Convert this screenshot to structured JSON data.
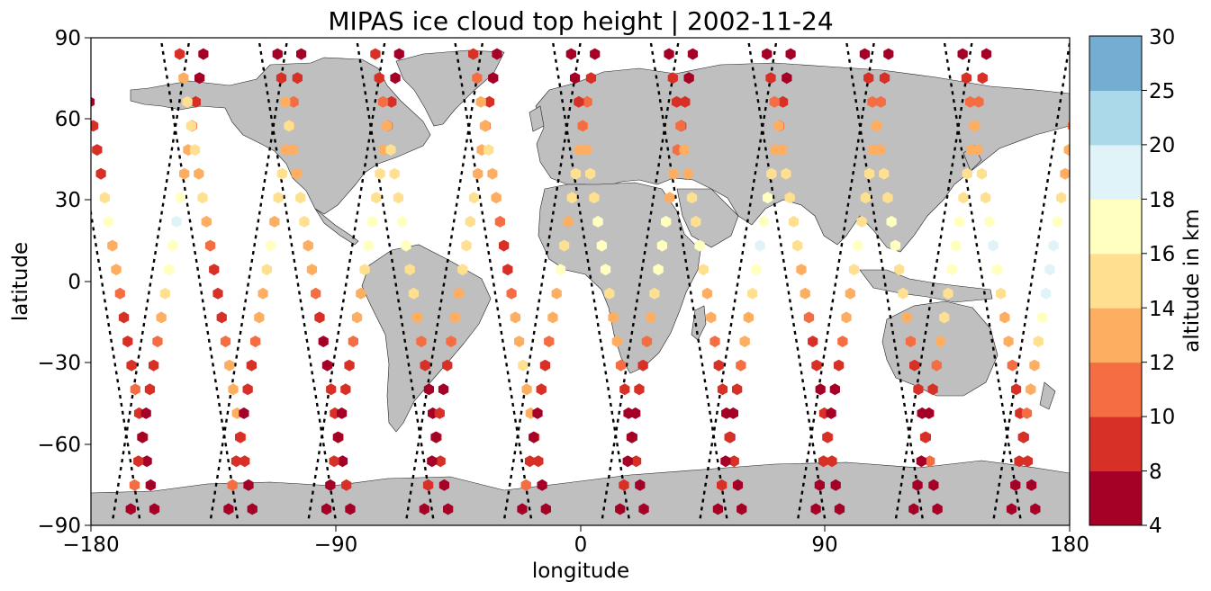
{
  "title": "MIPAS ice cloud top height | 2002-11-24",
  "xlabel": "longitude",
  "ylabel": "latitude",
  "colorbar_label": "altitude in km",
  "x_ticks": [
    "−180",
    "−90",
    "0",
    "90",
    "180"
  ],
  "y_ticks": [
    "90",
    "60",
    "30",
    "0",
    "−30",
    "−60",
    "−90"
  ],
  "colorbar_ticks": [
    "4",
    "8",
    "10",
    "12",
    "14",
    "16",
    "18",
    "20",
    "25",
    "30"
  ],
  "chart_data": {
    "type": "scatter",
    "projection": "plate-carree",
    "xlim": [
      -180,
      180
    ],
    "ylim": [
      -90,
      90
    ],
    "x_tick_values": [
      -180,
      -90,
      0,
      90,
      180
    ],
    "y_tick_values": [
      90,
      60,
      30,
      0,
      -30,
      -60,
      -90
    ],
    "colorbar": {
      "bounds": [
        4,
        8,
        10,
        12,
        14,
        16,
        18,
        20,
        25,
        30
      ],
      "colors": [
        "#a50026",
        "#d73027",
        "#f46d43",
        "#fdae61",
        "#fee090",
        "#ffffbf",
        "#e0f3f8",
        "#abd9e9",
        "#74add1",
        "#4575b4",
        "#313695"
      ]
    },
    "land_color": "#bfbfbf",
    "marker": "hexagon",
    "orbit_track_style": "black dashed",
    "orbits": [
      {
        "lon0": -176,
        "dir": "desc",
        "heights": [
          8,
          8,
          6,
          8,
          8,
          8,
          15,
          16,
          13,
          12,
          10,
          8,
          8,
          8,
          10,
          8,
          8,
          6,
          6,
          6
        ]
      },
      {
        "lon0": -158,
        "dir": "asc",
        "heights": [
          6,
          6,
          8,
          10,
          12,
          13,
          16,
          18,
          17,
          17,
          14,
          12,
          10,
          8,
          8,
          6,
          6,
          8,
          10,
          6
        ]
      },
      {
        "lon0": -140,
        "dir": "desc",
        "heights": [
          8,
          13,
          14,
          15,
          15,
          13,
          14,
          13,
          10,
          8,
          8,
          8,
          10,
          12,
          13,
          12,
          10,
          8,
          6,
          6
        ]
      },
      {
        "lon0": -122,
        "dir": "asc",
        "heights": [
          6,
          8,
          10,
          12,
          13,
          15,
          14,
          12,
          17,
          15,
          13,
          12,
          10,
          8,
          8,
          6,
          8,
          8,
          10,
          6
        ]
      },
      {
        "lon0": -104,
        "dir": "desc",
        "heights": [
          6,
          8,
          12,
          14,
          13,
          13,
          14,
          15,
          13,
          12,
          10,
          8,
          6,
          6,
          8,
          8,
          10,
          6,
          8,
          6
        ]
      },
      {
        "lon0": -86,
        "dir": "asc",
        "heights": [
          6,
          6,
          8,
          10,
          13,
          14,
          15,
          16,
          17,
          15,
          13,
          12,
          10,
          8,
          8,
          6,
          6,
          8,
          6,
          6
        ]
      },
      {
        "lon0": -68,
        "dir": "desc",
        "heights": [
          8,
          8,
          10,
          13,
          15,
          15,
          14,
          16,
          17,
          15,
          14,
          12,
          10,
          8,
          6,
          6,
          8,
          8,
          6,
          6
        ]
      },
      {
        "lon0": -50,
        "dir": "asc",
        "heights": [
          6,
          6,
          8,
          10,
          12,
          13,
          14,
          15,
          15,
          14,
          13,
          12,
          10,
          8,
          6,
          8,
          6,
          6,
          8,
          6
        ]
      },
      {
        "lon0": -32,
        "dir": "desc",
        "heights": [
          8,
          10,
          12,
          13,
          14,
          13,
          12,
          10,
          8,
          8,
          10,
          12,
          13,
          14,
          13,
          12,
          10,
          8,
          6,
          6
        ]
      },
      {
        "lon0": -14,
        "dir": "asc",
        "heights": [
          6,
          8,
          10,
          12,
          13,
          14,
          14,
          13,
          15,
          16,
          13,
          12,
          10,
          8,
          8,
          6,
          6,
          8,
          10,
          6
        ]
      },
      {
        "lon0": 4,
        "dir": "desc",
        "heights": [
          6,
          6,
          8,
          10,
          12,
          14,
          15,
          16,
          17,
          16,
          14,
          13,
          12,
          10,
          8,
          6,
          6,
          8,
          6,
          6
        ]
      },
      {
        "lon0": 22,
        "dir": "asc",
        "heights": [
          6,
          6,
          8,
          8,
          10,
          12,
          13,
          16,
          17,
          16,
          14,
          13,
          10,
          8,
          8,
          6,
          6,
          6,
          8,
          6
        ]
      },
      {
        "lon0": 40,
        "dir": "desc",
        "heights": [
          6,
          8,
          8,
          10,
          12,
          13,
          14,
          15,
          16,
          14,
          13,
          12,
          10,
          8,
          8,
          6,
          6,
          8,
          6,
          6
        ]
      },
      {
        "lon0": 58,
        "dir": "asc",
        "heights": [
          6,
          6,
          8,
          10,
          13,
          14,
          16,
          17,
          18,
          17,
          15,
          13,
          12,
          10,
          8,
          6,
          8,
          6,
          8,
          6
        ]
      },
      {
        "lon0": 76,
        "dir": "desc",
        "heights": [
          6,
          8,
          10,
          12,
          13,
          14,
          15,
          15,
          14,
          13,
          12,
          10,
          8,
          8,
          6,
          8,
          10,
          8,
          6,
          6
        ]
      },
      {
        "lon0": 94,
        "dir": "asc",
        "heights": [
          6,
          8,
          10,
          12,
          13,
          14,
          15,
          15,
          16,
          14,
          13,
          12,
          10,
          8,
          6,
          6,
          8,
          8,
          6,
          6
        ]
      },
      {
        "lon0": 112,
        "dir": "desc",
        "heights": [
          6,
          8,
          10,
          12,
          13,
          14,
          15,
          16,
          17,
          15,
          14,
          13,
          10,
          8,
          8,
          6,
          8,
          10,
          6,
          6
        ]
      },
      {
        "lon0": 130,
        "dir": "asc",
        "heights": [
          6,
          8,
          10,
          12,
          13,
          14,
          15,
          16,
          17,
          17,
          15,
          14,
          13,
          10,
          8,
          6,
          8,
          6,
          6,
          6
        ]
      },
      {
        "lon0": 148,
        "dir": "desc",
        "heights": [
          6,
          8,
          10,
          12,
          13,
          14,
          15,
          17,
          18,
          16,
          15,
          13,
          12,
          10,
          8,
          8,
          6,
          8,
          6,
          6
        ]
      },
      {
        "lon0": 166,
        "dir": "asc",
        "heights": [
          6,
          6,
          8,
          10,
          12,
          13,
          15,
          17,
          19,
          19,
          18,
          16,
          14,
          13,
          12,
          10,
          8,
          8,
          6,
          6
        ]
      }
    ]
  }
}
